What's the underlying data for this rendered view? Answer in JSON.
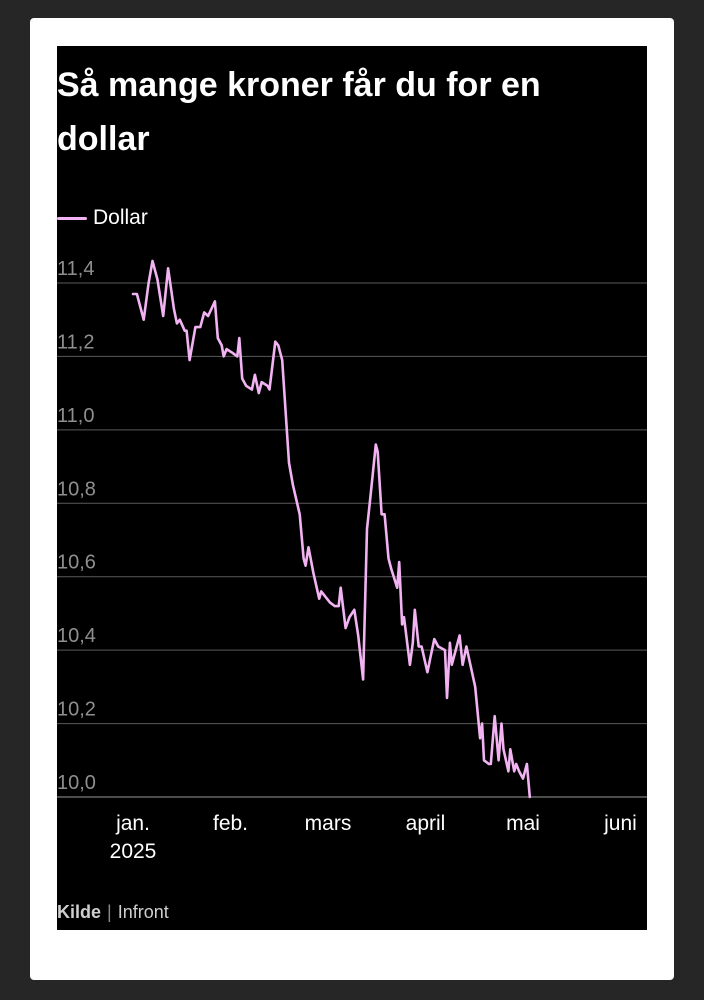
{
  "chart_data": {
    "type": "line",
    "title": "Så mange kroner får du for en dollar",
    "legend_position": "top-left",
    "ylim": [
      10.0,
      11.4
    ],
    "grid": "horizontal",
    "yticks": [
      "11,4",
      "11,2",
      "11,0",
      "10,8",
      "10,6",
      "10,4",
      "10,2",
      "10,0"
    ],
    "ytick_values": [
      11.4,
      11.2,
      11.0,
      10.8,
      10.6,
      10.4,
      10.2,
      10.0
    ],
    "xticks": [
      {
        "label": "jan.",
        "sublabel": "2025",
        "month": 0
      },
      {
        "label": "feb.",
        "sublabel": "",
        "month": 1
      },
      {
        "label": "mars",
        "sublabel": "",
        "month": 2
      },
      {
        "label": "april",
        "sublabel": "",
        "month": 3
      },
      {
        "label": "mai",
        "sublabel": "",
        "month": 4
      },
      {
        "label": "juni",
        "sublabel": "",
        "month": 5
      }
    ],
    "series": [
      {
        "name": "Dollar",
        "color": "#f2b3f2",
        "points": [
          [
            0.0,
            11.37
          ],
          [
            0.04,
            11.37
          ],
          [
            0.11,
            11.3
          ],
          [
            0.16,
            11.4
          ],
          [
            0.2,
            11.46
          ],
          [
            0.25,
            11.41
          ],
          [
            0.31,
            11.31
          ],
          [
            0.36,
            11.44
          ],
          [
            0.42,
            11.33
          ],
          [
            0.45,
            11.29
          ],
          [
            0.48,
            11.3
          ],
          [
            0.53,
            11.27
          ],
          [
            0.55,
            11.27
          ],
          [
            0.58,
            11.19
          ],
          [
            0.64,
            11.28
          ],
          [
            0.69,
            11.28
          ],
          [
            0.73,
            11.32
          ],
          [
            0.77,
            11.31
          ],
          [
            0.84,
            11.35
          ],
          [
            0.87,
            11.25
          ],
          [
            0.91,
            11.23
          ],
          [
            0.93,
            11.2
          ],
          [
            0.96,
            11.22
          ],
          [
            1.02,
            11.21
          ],
          [
            1.07,
            11.2
          ],
          [
            1.09,
            11.25
          ],
          [
            1.12,
            11.14
          ],
          [
            1.16,
            11.12
          ],
          [
            1.22,
            11.11
          ],
          [
            1.25,
            11.15
          ],
          [
            1.29,
            11.1
          ],
          [
            1.32,
            11.13
          ],
          [
            1.38,
            11.12
          ],
          [
            1.4,
            11.11
          ],
          [
            1.46,
            11.24
          ],
          [
            1.49,
            11.23
          ],
          [
            1.53,
            11.19
          ],
          [
            1.6,
            10.91
          ],
          [
            1.64,
            10.85
          ],
          [
            1.71,
            10.77
          ],
          [
            1.75,
            10.65
          ],
          [
            1.77,
            10.63
          ],
          [
            1.8,
            10.68
          ],
          [
            1.85,
            10.61
          ],
          [
            1.91,
            10.54
          ],
          [
            1.93,
            10.56
          ],
          [
            1.96,
            10.55
          ],
          [
            2.02,
            10.53
          ],
          [
            2.07,
            10.52
          ],
          [
            2.11,
            10.52
          ],
          [
            2.13,
            10.57
          ],
          [
            2.18,
            10.46
          ],
          [
            2.22,
            10.49
          ],
          [
            2.27,
            10.51
          ],
          [
            2.31,
            10.44
          ],
          [
            2.36,
            10.32
          ],
          [
            2.4,
            10.73
          ],
          [
            2.44,
            10.83
          ],
          [
            2.49,
            10.96
          ],
          [
            2.51,
            10.94
          ],
          [
            2.55,
            10.77
          ],
          [
            2.58,
            10.77
          ],
          [
            2.62,
            10.65
          ],
          [
            2.65,
            10.62
          ],
          [
            2.71,
            10.57
          ],
          [
            2.73,
            10.64
          ],
          [
            2.76,
            10.47
          ],
          [
            2.78,
            10.49
          ],
          [
            2.84,
            10.36
          ],
          [
            2.87,
            10.42
          ],
          [
            2.89,
            10.51
          ],
          [
            2.93,
            10.41
          ],
          [
            2.96,
            10.41
          ],
          [
            3.02,
            10.34
          ],
          [
            3.05,
            10.38
          ],
          [
            3.09,
            10.43
          ],
          [
            3.13,
            10.41
          ],
          [
            3.2,
            10.4
          ],
          [
            3.22,
            10.27
          ],
          [
            3.25,
            10.42
          ],
          [
            3.27,
            10.36
          ],
          [
            3.35,
            10.44
          ],
          [
            3.38,
            10.36
          ],
          [
            3.42,
            10.41
          ],
          [
            3.51,
            10.3
          ],
          [
            3.56,
            10.16
          ],
          [
            3.58,
            10.2
          ],
          [
            3.6,
            10.1
          ],
          [
            3.65,
            10.09
          ],
          [
            3.67,
            10.09
          ],
          [
            3.71,
            10.22
          ],
          [
            3.75,
            10.1
          ],
          [
            3.78,
            10.2
          ],
          [
            3.8,
            10.13
          ],
          [
            3.85,
            10.07
          ],
          [
            3.87,
            10.13
          ],
          [
            3.91,
            10.07
          ],
          [
            3.93,
            10.09
          ],
          [
            3.96,
            10.07
          ],
          [
            4.0,
            10.05
          ],
          [
            4.04,
            10.09
          ],
          [
            4.07,
            10.0
          ]
        ]
      }
    ]
  },
  "source": {
    "label": "Kilde",
    "value": "Infront"
  }
}
